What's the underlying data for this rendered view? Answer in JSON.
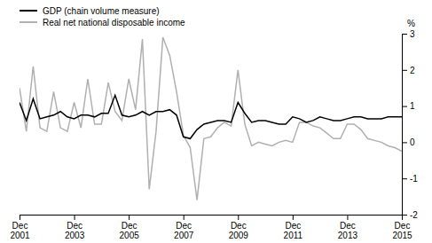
{
  "chart_data": {
    "type": "line",
    "ylabel": "%",
    "categories": [
      "Dec\n2001",
      null,
      null,
      null,
      null,
      null,
      null,
      null,
      "Dec\n2003",
      null,
      null,
      null,
      null,
      null,
      null,
      null,
      "Dec\n2005",
      null,
      null,
      null,
      null,
      null,
      null,
      null,
      "Dec\n2007",
      null,
      null,
      null,
      null,
      null,
      null,
      null,
      "Dec\n2009",
      null,
      null,
      null,
      null,
      null,
      null,
      null,
      "Dec\n2011",
      null,
      null,
      null,
      null,
      null,
      null,
      null,
      "Dec\n2013",
      null,
      null,
      null,
      null,
      null,
      null,
      null,
      "Dec\n2015"
    ],
    "series": [
      {
        "name": "Real net national disposable income",
        "color": "#b0b0b0",
        "values": [
          1.5,
          0.3,
          2.1,
          0.4,
          0.3,
          1.4,
          0.4,
          0.3,
          1.1,
          0.4,
          1.75,
          0.5,
          0.5,
          1.65,
          0.85,
          0.6,
          1.75,
          0.9,
          2.85,
          -1.3,
          0.3,
          2.9,
          2.4,
          1.4,
          0.2,
          -0.15,
          -1.6,
          0.1,
          0.15,
          0.4,
          0.55,
          0.45,
          2.0,
          0.5,
          -0.1,
          0.0,
          -0.05,
          -0.1,
          0.0,
          0.05,
          0.0,
          0.55,
          0.55,
          0.45,
          0.4,
          0.25,
          0.1,
          0.1,
          0.5,
          0.5,
          0.35,
          0.1,
          0.05,
          0.0,
          -0.1,
          -0.15,
          -0.25
        ]
      },
      {
        "name": "GDP (chain volume measure)",
        "color": "#000000",
        "values": [
          1.1,
          0.6,
          1.2,
          0.65,
          0.7,
          0.75,
          0.85,
          0.7,
          0.65,
          0.75,
          0.75,
          0.7,
          0.8,
          0.8,
          1.3,
          0.75,
          0.7,
          0.75,
          0.85,
          0.75,
          0.85,
          0.85,
          0.9,
          0.75,
          0.15,
          0.1,
          0.35,
          0.5,
          0.55,
          0.6,
          0.6,
          0.55,
          1.1,
          0.8,
          0.55,
          0.6,
          0.6,
          0.55,
          0.5,
          0.5,
          0.7,
          0.65,
          0.55,
          0.6,
          0.7,
          0.65,
          0.6,
          0.6,
          0.65,
          0.7,
          0.7,
          0.65,
          0.65,
          0.65,
          0.7,
          0.7,
          0.7
        ]
      }
    ],
    "ylim": [
      -2,
      3
    ],
    "yticks": [
      -2,
      -1,
      0,
      1,
      2,
      3
    ],
    "grid": false,
    "legend": "upper left"
  }
}
